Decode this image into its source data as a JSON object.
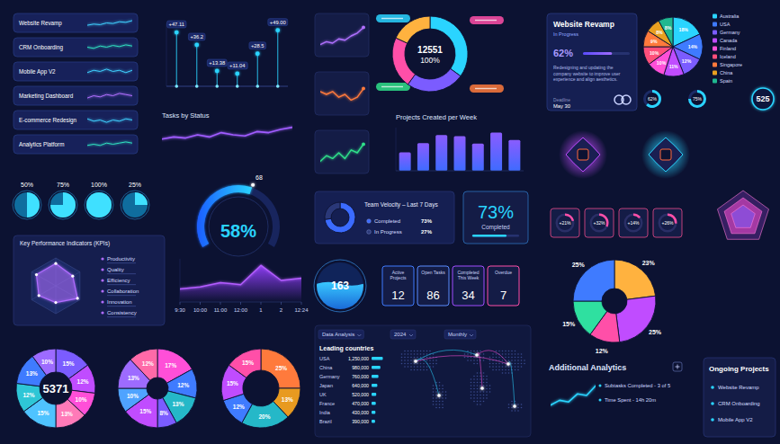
{
  "chart_data": [
    {
      "type": "sparkline",
      "tick_labels": false,
      "ylim": [
        0,
        10
      ],
      "categories": [
        null,
        null,
        null,
        null,
        null,
        null,
        null,
        null
      ],
      "series": [
        {
          "name": "Website Revamp",
          "color": "#3fd0ff",
          "values": [
            3,
            4,
            3.5,
            5,
            4.5,
            6,
            5.5,
            7
          ]
        },
        {
          "name": "CRM Onboarding",
          "color": "#2fe0c0",
          "values": [
            5,
            4,
            6,
            5,
            6.5,
            5.5,
            7,
            6
          ]
        },
        {
          "name": "Mobile App V2",
          "color": "#3fd0ff",
          "values": [
            4,
            6,
            5,
            7,
            5,
            6,
            4,
            6
          ]
        },
        {
          "name": "Marketing Dashboard",
          "color": "#b070ff",
          "values": [
            3,
            5,
            4,
            6,
            5,
            7,
            6,
            5
          ]
        },
        {
          "name": "E-commerce Redesign",
          "color": "#3fd0ff",
          "values": [
            6,
            4,
            5,
            3,
            5,
            4,
            6,
            5
          ]
        },
        {
          "name": "Analytics Platform",
          "color": "#2fe0c0",
          "values": [
            4,
            5,
            4,
            6,
            5,
            6,
            7,
            6
          ]
        }
      ]
    },
    {
      "type": "lollipop",
      "tick_labels": false,
      "data_labels": true,
      "ylim": [
        0,
        55
      ],
      "categories": [
        null,
        null,
        null,
        null,
        null,
        null
      ],
      "values": [
        47.11,
        36.2,
        13.38,
        11.04,
        28.5,
        49.0
      ],
      "value_labels": [
        "+47.11",
        "+36.2",
        "+13.38",
        "+11.04",
        "+28.5",
        "+49.00"
      ],
      "color": "#2ad4ff"
    },
    {
      "type": "line",
      "title": "Tasks by Status",
      "tick_labels": false,
      "ylim": [
        0,
        10
      ],
      "categories": [
        null,
        null,
        null,
        null,
        null,
        null,
        null,
        null,
        null,
        null,
        null,
        null
      ],
      "values": [
        3,
        4,
        3.5,
        5,
        4,
        6,
        5,
        4.5,
        6.5,
        6,
        7.5,
        8.5
      ],
      "color": "#a05cff"
    },
    {
      "type": "progress",
      "ylim": [
        0,
        100
      ],
      "categories": [
        null,
        null,
        null,
        null
      ],
      "values": [
        50,
        75,
        100,
        25
      ],
      "value_labels": [
        "50%",
        "75%",
        "100%",
        "25%"
      ],
      "color": "#3fe0ff"
    },
    {
      "type": "gauge",
      "ylim": [
        0,
        100
      ],
      "values": [
        58
      ],
      "value_labels": [
        "58%"
      ],
      "annotation": "68",
      "color": "#2ad4ff"
    },
    {
      "type": "radar",
      "title": "Key Performance Indicators (KPIs)",
      "ylim": [
        0,
        10
      ],
      "categories": [
        "Productivity",
        "Quality",
        "Efficiency",
        "Collaboration",
        "Innovation",
        "Consistency"
      ],
      "values": [
        8,
        7,
        9,
        6,
        7,
        8
      ],
      "color": "#b06cff"
    },
    {
      "type": "area",
      "ylim": [
        0,
        10
      ],
      "categories": [
        "9:30",
        "10:00",
        "11:00",
        "12:00",
        "1",
        "2",
        "12:24"
      ],
      "values": [
        3,
        3.5,
        4.5,
        4,
        8.5,
        5,
        5.5
      ],
      "color": "#b35cff"
    },
    {
      "type": "pie",
      "data_labels": true,
      "annotation": "5371",
      "values": [
        15,
        12,
        10,
        13,
        15,
        12,
        13,
        10
      ],
      "value_labels": [
        "15%",
        "12%",
        "10%",
        "13%",
        "15%",
        "12%",
        "13%",
        "10%"
      ],
      "colors": [
        "#7b5cff",
        "#c04cff",
        "#ff4fd8",
        "#ff7ab8",
        "#4fc3ff",
        "#2ec6d6",
        "#3f7bff",
        "#9d6bff"
      ]
    },
    {
      "type": "pie",
      "data_labels": true,
      "values": [
        17,
        12,
        13,
        8,
        15,
        10,
        13,
        12
      ],
      "value_labels": [
        "17%",
        "12%",
        "13%",
        "8%",
        "15%",
        "10%",
        "13%",
        "12%"
      ],
      "colors": [
        "#ff4fd8",
        "#3f7bff",
        "#25b8c8",
        "#7b5cff",
        "#c04cff",
        "#4fa3ff",
        "#9d6bff",
        "#ff6aa8"
      ]
    },
    {
      "type": "pie",
      "data_labels": true,
      "values": [
        25,
        13,
        20,
        12,
        15,
        15
      ],
      "value_labels": [
        "25%",
        "13%",
        "20%",
        "12%",
        "15%",
        "15%"
      ],
      "colors": [
        "#ff7a3c",
        "#e89a20",
        "#25b8c8",
        "#3f7bff",
        "#c04cff",
        "#ff4fa8"
      ]
    },
    {
      "type": "line",
      "tick_labels": false,
      "ylim": [
        0,
        10
      ],
      "categories": [
        null,
        null,
        null,
        null,
        null,
        null,
        null,
        null
      ],
      "values": [
        2,
        3,
        2.5,
        4,
        3.5,
        5,
        6,
        8
      ],
      "color": "#b070ff"
    },
    {
      "type": "line",
      "tick_labels": false,
      "ylim": [
        0,
        10
      ],
      "categories": [
        null,
        null,
        null,
        null,
        null,
        null,
        null,
        null
      ],
      "values": [
        6,
        5,
        6,
        4,
        5,
        3,
        4,
        7
      ],
      "color": "#ff7a3c"
    },
    {
      "type": "line",
      "tick_labels": false,
      "ylim": [
        0,
        10
      ],
      "categories": [
        null,
        null,
        null,
        null,
        null,
        null,
        null,
        null
      ],
      "values": [
        2,
        4,
        3,
        5,
        3,
        6,
        5,
        8
      ],
      "color": "#2fe08a"
    },
    {
      "type": "donut",
      "annotation": "12551",
      "subtitle": "100%",
      "values": [
        35,
        25,
        22,
        18
      ],
      "colors": [
        "#2ad4ff",
        "#7b5cff",
        "#ff4fa8",
        "#ffb23f"
      ]
    },
    {
      "type": "bar",
      "title": "Projects Created per Week",
      "tick_labels": false,
      "ylim": [
        0,
        70
      ],
      "categories": [
        null,
        null,
        null,
        null,
        null,
        null,
        null
      ],
      "values": [
        30,
        45,
        58,
        56,
        44,
        62,
        50
      ],
      "color": "#6a6bff"
    },
    {
      "type": "donut",
      "title": "Team Velocity – Last 7 Days",
      "legend": "right",
      "categories": [
        "Completed",
        "In Progress"
      ],
      "values": [
        73,
        27
      ],
      "value_labels": [
        "73%",
        "27%"
      ],
      "colors": [
        "#3b6bff",
        "#2a3878"
      ]
    },
    {
      "type": "stat",
      "title": "Completed",
      "ylim": [
        0,
        100
      ],
      "values": [
        73
      ],
      "value_labels": [
        "73%"
      ],
      "color": "#2ad4ff"
    },
    {
      "type": "liquid",
      "ylim": [
        0,
        300
      ],
      "values": [
        163
      ],
      "color": "#2ab8ff"
    },
    {
      "type": "stat",
      "categories": [
        "Active Projects",
        "Open Tasks",
        "Completed This Week",
        "Overdue"
      ],
      "values": [
        12,
        86,
        34,
        7
      ],
      "colors": [
        "#3f7bff",
        "#5a8cff",
        "#a04cff",
        "#ff4fa8"
      ]
    },
    {
      "type": "map",
      "title": "Leading countries",
      "header": [
        "Data Analysis",
        "2024",
        "Monthly"
      ],
      "ylim": [
        0,
        1500000
      ],
      "categories": [
        "USA",
        "China",
        "Germany",
        "Japan",
        "UK",
        "France",
        "India",
        "Brazil"
      ],
      "values": [
        1250000,
        980000,
        760000,
        640000,
        520000,
        470000,
        430000,
        390000
      ],
      "value_labels": [
        "1,250,000",
        "980,000",
        "760,000",
        "640,000",
        "520,000",
        "470,000",
        "430,000",
        "390,000"
      ],
      "color": "#2ad4ff"
    },
    {
      "type": "progress",
      "title": "Website Revamp",
      "subtitle": "In Progress",
      "ylim": [
        0,
        100
      ],
      "values": [
        62
      ],
      "value_labels": [
        "62%"
      ],
      "text": "Redesigning and updating the company website to improve user experience and align aesthetics.",
      "deadline": [
        "Deadline",
        "May 30"
      ],
      "color": "#7b5cff"
    },
    {
      "type": "pie",
      "data_labels": true,
      "legend": "right",
      "categories": [
        "Australia",
        "USA",
        "Germany",
        "Canada",
        "Finland",
        "Iceland",
        "Singapore",
        "China",
        "Spain"
      ],
      "values": [
        18,
        14,
        12,
        11,
        10,
        10,
        9,
        8,
        8
      ],
      "value_labels": [
        "18%",
        "14%",
        "12%",
        "11%",
        "10%",
        "10%",
        "9%",
        "8%",
        "8%"
      ],
      "colors": [
        "#2ad4ff",
        "#3f7bff",
        "#7b5cff",
        "#c04cff",
        "#ff4fd8",
        "#ff4f7a",
        "#ff7a3c",
        "#e8a020",
        "#20b890"
      ]
    },
    {
      "type": "progress",
      "ylim": [
        0,
        100
      ],
      "values": [
        62,
        75
      ],
      "value_labels": [
        "62%",
        "75%"
      ],
      "color": "#2ad4ff"
    },
    {
      "type": "stat",
      "values": [
        525
      ],
      "color": "#2ad4ff"
    },
    {
      "type": "progress",
      "ylim": [
        0,
        100
      ],
      "values": [
        21,
        32,
        14,
        26
      ],
      "value_labels": [
        "+21%",
        "+32%",
        "+14%",
        "+26%"
      ],
      "color": "#ff4fa8"
    },
    {
      "type": "pie",
      "data_labels": true,
      "values": [
        23,
        25,
        12,
        15,
        25
      ],
      "value_labels": [
        "23%",
        "25%",
        "12%",
        "15%",
        "25%"
      ],
      "colors": [
        "#ffb23f",
        "#c04cff",
        "#ff4fa8",
        "#2fe0a0",
        "#3f7bff"
      ]
    },
    {
      "type": "line",
      "title": "Additional Analytics",
      "tick_labels": false,
      "ylim": [
        0,
        10
      ],
      "categories": [
        null,
        null,
        null,
        null,
        null,
        null
      ],
      "values": [
        2,
        3.5,
        3,
        5.5,
        5,
        8
      ],
      "annotations": [
        "Subtasks Completed - 3 of 5",
        "Time Spent - 14h 20m"
      ],
      "color": "#2ad4ff"
    },
    {
      "type": "list",
      "title": "Ongoing Projects",
      "categories": [
        "Website Revamp",
        "CRM Onboarding",
        "Mobile App V2"
      ]
    }
  ]
}
